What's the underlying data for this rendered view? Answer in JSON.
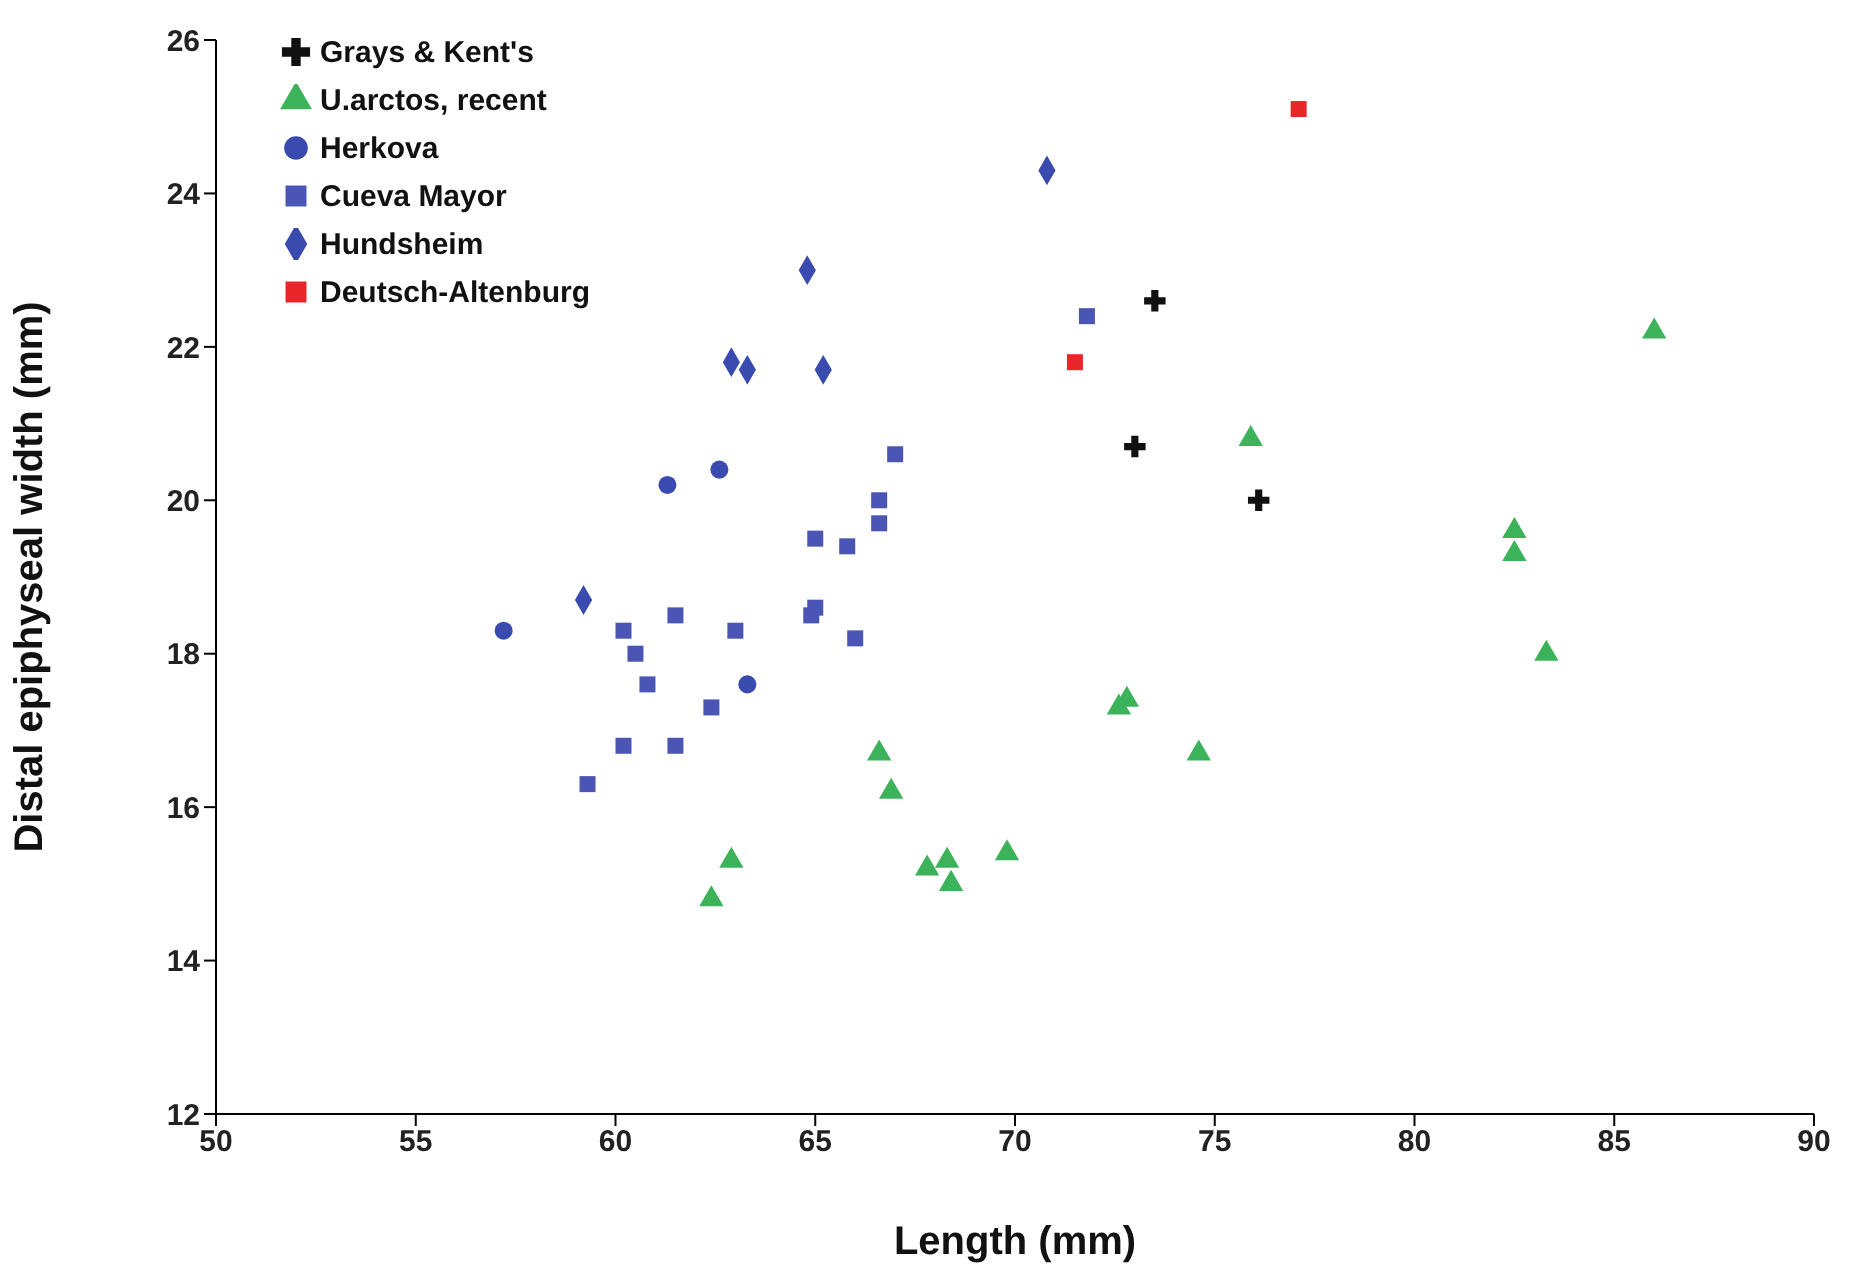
{
  "chart_data": {
    "type": "scatter",
    "xlabel": "Length (mm)",
    "ylabel": "Distal epiphyseal width (mm)",
    "xlim": [
      50,
      90
    ],
    "xticks": [
      50,
      55,
      60,
      65,
      70,
      75,
      80,
      85,
      90
    ],
    "ylim": [
      12,
      26
    ],
    "yticks": [
      12,
      14,
      16,
      18,
      20,
      22,
      24,
      26
    ],
    "grid": false,
    "legend": "top left",
    "series": [
      {
        "name": "Grays & Kent's",
        "color": "#111111",
        "marker": "cross",
        "x": [
          73.5,
          73.0,
          76.1
        ],
        "values": [
          22.6,
          20.7,
          20.0
        ]
      },
      {
        "name": "U.arctos, recent",
        "color": "#3cb35a",
        "marker": "triangle",
        "x": [
          75.9,
          86.0,
          82.5,
          82.5,
          83.3,
          72.6,
          72.8,
          74.6,
          66.6,
          66.9,
          69.8,
          67.8,
          68.3,
          68.4,
          62.9,
          62.4
        ],
        "values": [
          20.8,
          22.2,
          19.6,
          19.3,
          18.0,
          17.3,
          17.4,
          16.7,
          16.7,
          16.2,
          15.4,
          15.2,
          15.3,
          15.0,
          15.3,
          14.8
        ]
      },
      {
        "name": "Herkova",
        "color": "#3a4bb0",
        "marker": "circle",
        "x": [
          57.2,
          61.3,
          62.6,
          63.3
        ],
        "values": [
          18.3,
          20.2,
          20.4,
          17.6
        ]
      },
      {
        "name": "Cueva Mayor",
        "color": "#4a55b5",
        "marker": "square",
        "x": [
          71.8,
          67.0,
          66.6,
          66.6,
          65.0,
          65.8,
          64.9,
          65.0,
          66.0,
          61.5,
          63.0,
          60.2,
          60.5,
          60.8,
          62.4,
          61.5,
          60.2,
          59.3
        ],
        "values": [
          22.4,
          20.6,
          20.0,
          19.7,
          19.5,
          19.4,
          18.5,
          18.6,
          18.2,
          18.5,
          18.3,
          18.3,
          18.0,
          17.6,
          17.3,
          16.8,
          16.8,
          16.3
        ]
      },
      {
        "name": "Hundsheim",
        "color": "#3a4bb0",
        "marker": "diamond",
        "x": [
          70.8,
          64.8,
          62.9,
          63.3,
          65.2,
          59.2
        ],
        "values": [
          24.3,
          23.0,
          21.8,
          21.7,
          21.7,
          18.7
        ]
      },
      {
        "name": "Deutsch-Altenburg",
        "color": "#e8262a",
        "marker": "square",
        "x": [
          77.1,
          71.5
        ],
        "values": [
          25.1,
          21.8
        ]
      }
    ]
  }
}
